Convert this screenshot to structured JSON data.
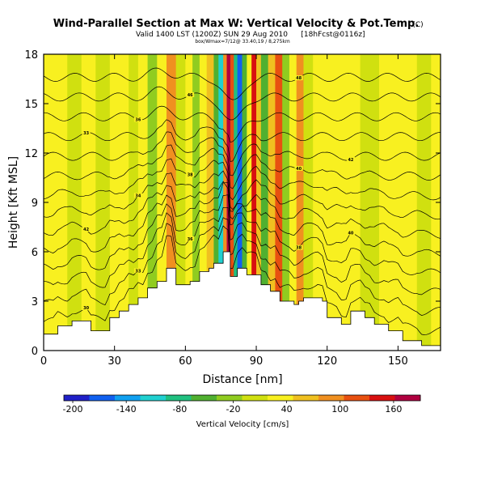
{
  "chart_data": {
    "type": "heatmap",
    "title": "Wind-Parallel Section at Max W: Vertical Velocity & Pot.Temp.",
    "title_mark": "(C)",
    "subtitle": "Valid 1400 LST (1200Z) SUN 29 Aug 2010",
    "subtitle_tag": "[18hFcst@0116z]",
    "subtitle2": "box/Wmax=7/12@ 33.40,19 / 8,275km",
    "xlabel": "Distance [nm]",
    "ylabel": "Height [Kft MSL]",
    "xlim": [
      0,
      168
    ],
    "ylim": [
      0,
      18
    ],
    "xticks": [
      0,
      30,
      60,
      90,
      120,
      150
    ],
    "yticks": [
      0,
      3,
      6,
      9,
      12,
      15,
      18
    ],
    "colorbar": {
      "label": "Vertical Velocity [cm/s]",
      "ticks": [
        -200,
        -140,
        -80,
        -20,
        40,
        100,
        160
      ],
      "min": -210,
      "max": 190,
      "colors": [
        "#2020c8",
        "#1060f0",
        "#10a0f0",
        "#20d0d0",
        "#20c080",
        "#50b030",
        "#90cc20",
        "#d0e010",
        "#f8f020",
        "#f0c020",
        "#f09020",
        "#e85010",
        "#d81010",
        "#b00040"
      ]
    },
    "vertical_velocity_columns": [
      {
        "x": [
          0,
          10
        ],
        "w": 20
      },
      {
        "x": [
          10,
          16
        ],
        "w": -10
      },
      {
        "x": [
          16,
          22
        ],
        "w": 25
      },
      {
        "x": [
          22,
          28
        ],
        "w": -5
      },
      {
        "x": [
          28,
          36
        ],
        "w": 20
      },
      {
        "x": [
          36,
          40
        ],
        "w": 0
      },
      {
        "x": [
          40,
          44
        ],
        "w": 45
      },
      {
        "x": [
          44,
          48
        ],
        "w": -25
      },
      {
        "x": [
          48,
          52
        ],
        "w": 30
      },
      {
        "x": [
          52,
          56
        ],
        "w": 80
      },
      {
        "x": [
          56,
          60
        ],
        "w": -10
      },
      {
        "x": [
          60,
          63
        ],
        "w": 40
      },
      {
        "x": [
          63,
          66
        ],
        "w": -30
      },
      {
        "x": [
          66,
          69
        ],
        "w": 20
      },
      {
        "x": [
          69,
          72
        ],
        "w": 60
      },
      {
        "x": [
          72,
          74
        ],
        "w": -60
      },
      {
        "x": [
          74,
          76
        ],
        "w": -110
      },
      {
        "x": [
          76,
          77.5
        ],
        "w": 90
      },
      {
        "x": [
          77.5,
          79
        ],
        "w": 180
      },
      {
        "x": [
          79,
          80.5
        ],
        "w": 120
      },
      {
        "x": [
          80.5,
          82
        ],
        "w": -90
      },
      {
        "x": [
          82,
          84
        ],
        "w": -160
      },
      {
        "x": [
          84,
          86
        ],
        "w": -50
      },
      {
        "x": [
          86,
          88
        ],
        "w": 40
      },
      {
        "x": [
          88,
          90
        ],
        "w": 150
      },
      {
        "x": [
          90,
          92
        ],
        "w": 60
      },
      {
        "x": [
          92,
          95
        ],
        "w": -40
      },
      {
        "x": [
          95,
          98
        ],
        "w": 50
      },
      {
        "x": [
          98,
          101
        ],
        "w": 110
      },
      {
        "x": [
          101,
          104
        ],
        "w": -20
      },
      {
        "x": [
          104,
          107
        ],
        "w": 30
      },
      {
        "x": [
          107,
          110
        ],
        "w": 90
      },
      {
        "x": [
          110,
          114
        ],
        "w": -10
      },
      {
        "x": [
          114,
          120
        ],
        "w": 30
      },
      {
        "x": [
          120,
          128
        ],
        "w": 20
      },
      {
        "x": [
          128,
          134
        ],
        "w": 40
      },
      {
        "x": [
          134,
          142
        ],
        "w": 15
      },
      {
        "x": [
          142,
          148
        ],
        "w": 35
      },
      {
        "x": [
          148,
          158
        ],
        "w": 20
      },
      {
        "x": [
          158,
          164
        ],
        "w": -10
      },
      {
        "x": [
          164,
          168
        ],
        "w": 25
      }
    ],
    "terrain": [
      [
        0,
        1
      ],
      [
        4,
        1
      ],
      [
        6,
        1.5
      ],
      [
        10,
        1.5
      ],
      [
        12,
        1.8
      ],
      [
        18,
        1.8
      ],
      [
        20,
        1.2
      ],
      [
        26,
        1.2
      ],
      [
        28,
        2
      ],
      [
        30,
        2
      ],
      [
        32,
        2.4
      ],
      [
        34,
        2.4
      ],
      [
        36,
        2.8
      ],
      [
        38,
        2.8
      ],
      [
        40,
        3.2
      ],
      [
        42,
        3.2
      ],
      [
        44,
        3.8
      ],
      [
        46,
        3.8
      ],
      [
        48,
        4.2
      ],
      [
        50,
        4.2
      ],
      [
        52,
        5
      ],
      [
        54,
        5
      ],
      [
        56,
        4
      ],
      [
        58,
        4
      ],
      [
        60,
        4
      ],
      [
        62,
        4.2
      ],
      [
        64,
        4.2
      ],
      [
        66,
        4.8
      ],
      [
        68,
        4.8
      ],
      [
        70,
        5
      ],
      [
        72,
        5.3
      ],
      [
        74,
        5.3
      ],
      [
        76,
        6
      ],
      [
        78,
        6
      ],
      [
        79,
        4.5
      ],
      [
        80,
        4.5
      ],
      [
        82,
        5
      ],
      [
        84,
        5
      ],
      [
        86,
        4.6
      ],
      [
        88,
        4.6
      ],
      [
        90,
        4.6
      ],
      [
        92,
        4
      ],
      [
        94,
        4
      ],
      [
        96,
        3.6
      ],
      [
        98,
        3.6
      ],
      [
        100,
        3
      ],
      [
        104,
        3
      ],
      [
        106,
        2.8
      ],
      [
        108,
        3
      ],
      [
        110,
        3.2
      ],
      [
        116,
        3.2
      ],
      [
        118,
        3
      ],
      [
        120,
        2
      ],
      [
        124,
        2
      ],
      [
        126,
        1.6
      ],
      [
        128,
        1.6
      ],
      [
        130,
        2.4
      ],
      [
        134,
        2.4
      ],
      [
        136,
        2
      ],
      [
        138,
        2
      ],
      [
        140,
        1.6
      ],
      [
        144,
        1.6
      ],
      [
        146,
        1.2
      ],
      [
        150,
        1.2
      ],
      [
        152,
        0.6
      ],
      [
        158,
        0.6
      ],
      [
        160,
        0.3
      ],
      [
        168,
        0.3
      ]
    ],
    "isentropes": {
      "levels": [
        1,
        2.2,
        3.4,
        4.6,
        5.8,
        7,
        8.2,
        9.4,
        10.6,
        11.8,
        13,
        14.2,
        15.4,
        16.6
      ],
      "labels": [
        "30",
        "33",
        "36",
        "38",
        "40",
        "42",
        "34",
        "38",
        "40",
        "42",
        "33",
        "36",
        "46",
        "48"
      ]
    }
  }
}
